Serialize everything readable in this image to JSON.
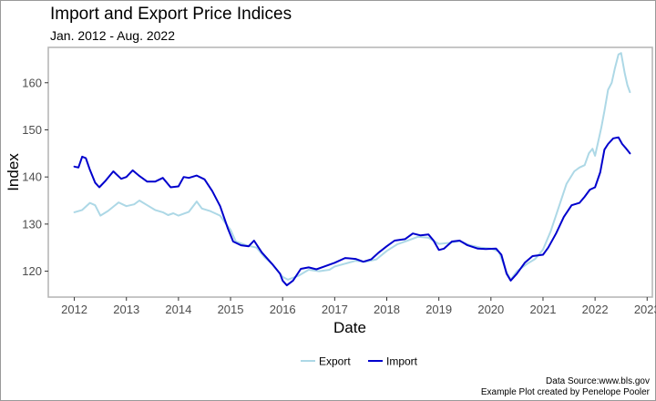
{
  "chart_data": {
    "type": "line",
    "title": "Import and Export Price Indices",
    "subtitle": "Jan. 2012 - Aug. 2022",
    "xlabel": "Date",
    "ylabel": "Index",
    "xlim": [
      2011.5,
      2023.1
    ],
    "ylim": [
      114.5,
      167.5
    ],
    "x_ticks": [
      "2012",
      "2013",
      "2014",
      "2015",
      "2016",
      "2017",
      "2018",
      "2019",
      "2020",
      "2021",
      "2022",
      "2023"
    ],
    "y_ticks": [
      "120",
      "130",
      "140",
      "150",
      "160"
    ],
    "grid": false,
    "legend_position": "bottom",
    "series": [
      {
        "name": "Export",
        "color": "#add8e6",
        "points": [
          [
            2012.0,
            132.5
          ],
          [
            2012.15,
            133.0
          ],
          [
            2012.3,
            134.5
          ],
          [
            2012.4,
            134.0
          ],
          [
            2012.5,
            131.8
          ],
          [
            2012.65,
            132.8
          ],
          [
            2012.85,
            134.6
          ],
          [
            2013.0,
            133.8
          ],
          [
            2013.15,
            134.2
          ],
          [
            2013.25,
            135.0
          ],
          [
            2013.4,
            134.0
          ],
          [
            2013.55,
            133.0
          ],
          [
            2013.7,
            132.5
          ],
          [
            2013.8,
            131.9
          ],
          [
            2013.9,
            132.3
          ],
          [
            2014.0,
            131.8
          ],
          [
            2014.2,
            132.6
          ],
          [
            2014.35,
            134.8
          ],
          [
            2014.45,
            133.3
          ],
          [
            2014.6,
            132.8
          ],
          [
            2014.8,
            131.8
          ],
          [
            2014.9,
            130.2
          ],
          [
            2015.0,
            128.8
          ],
          [
            2015.1,
            126.3
          ],
          [
            2015.3,
            125.5
          ],
          [
            2015.5,
            125.0
          ],
          [
            2015.65,
            123.0
          ],
          [
            2015.8,
            121.5
          ],
          [
            2016.0,
            118.8
          ],
          [
            2016.1,
            118.2
          ],
          [
            2016.3,
            119.0
          ],
          [
            2016.5,
            120.3
          ],
          [
            2016.7,
            120.0
          ],
          [
            2016.9,
            120.3
          ],
          [
            2017.0,
            121.0
          ],
          [
            2017.2,
            121.6
          ],
          [
            2017.4,
            122.2
          ],
          [
            2017.6,
            122.0
          ],
          [
            2017.8,
            122.5
          ],
          [
            2018.0,
            124.3
          ],
          [
            2018.2,
            125.7
          ],
          [
            2018.4,
            126.5
          ],
          [
            2018.6,
            127.3
          ],
          [
            2018.8,
            127.1
          ],
          [
            2019.0,
            125.8
          ],
          [
            2019.2,
            126.0
          ],
          [
            2019.4,
            126.4
          ],
          [
            2019.6,
            125.5
          ],
          [
            2019.8,
            125.0
          ],
          [
            2020.0,
            124.8
          ],
          [
            2020.15,
            124.2
          ],
          [
            2020.3,
            119.8
          ],
          [
            2020.38,
            118.2
          ],
          [
            2020.5,
            120.0
          ],
          [
            2020.7,
            121.6
          ],
          [
            2020.85,
            122.6
          ],
          [
            2021.0,
            124.6
          ],
          [
            2021.15,
            128.5
          ],
          [
            2021.3,
            133.5
          ],
          [
            2021.45,
            138.5
          ],
          [
            2021.6,
            141.2
          ],
          [
            2021.7,
            142.0
          ],
          [
            2021.8,
            142.5
          ],
          [
            2021.88,
            145.0
          ],
          [
            2021.95,
            146.0
          ],
          [
            2022.0,
            144.5
          ],
          [
            2022.05,
            147.0
          ],
          [
            2022.12,
            150.5
          ],
          [
            2022.18,
            154.0
          ],
          [
            2022.25,
            158.5
          ],
          [
            2022.32,
            160.0
          ],
          [
            2022.38,
            163.0
          ],
          [
            2022.45,
            166.0
          ],
          [
            2022.5,
            166.3
          ],
          [
            2022.57,
            162.0
          ],
          [
            2022.62,
            159.5
          ],
          [
            2022.67,
            158.0
          ]
        ]
      },
      {
        "name": "Import",
        "color": "#0000cd",
        "points": [
          [
            2012.0,
            142.2
          ],
          [
            2012.08,
            142.0
          ],
          [
            2012.15,
            144.3
          ],
          [
            2012.22,
            144.0
          ],
          [
            2012.3,
            141.5
          ],
          [
            2012.4,
            138.8
          ],
          [
            2012.48,
            137.8
          ],
          [
            2012.6,
            139.2
          ],
          [
            2012.75,
            141.2
          ],
          [
            2012.9,
            139.6
          ],
          [
            2013.0,
            140.0
          ],
          [
            2013.12,
            141.4
          ],
          [
            2013.25,
            140.2
          ],
          [
            2013.4,
            139.0
          ],
          [
            2013.55,
            139.0
          ],
          [
            2013.7,
            139.8
          ],
          [
            2013.85,
            137.8
          ],
          [
            2014.0,
            138.0
          ],
          [
            2014.1,
            140.0
          ],
          [
            2014.2,
            139.8
          ],
          [
            2014.35,
            140.3
          ],
          [
            2014.5,
            139.5
          ],
          [
            2014.65,
            137.0
          ],
          [
            2014.8,
            133.8
          ],
          [
            2014.95,
            129.0
          ],
          [
            2015.05,
            126.3
          ],
          [
            2015.2,
            125.5
          ],
          [
            2015.35,
            125.3
          ],
          [
            2015.45,
            126.5
          ],
          [
            2015.6,
            124.0
          ],
          [
            2015.8,
            121.5
          ],
          [
            2015.95,
            119.5
          ],
          [
            2016.0,
            118.0
          ],
          [
            2016.08,
            117.0
          ],
          [
            2016.2,
            118.0
          ],
          [
            2016.35,
            120.5
          ],
          [
            2016.5,
            120.8
          ],
          [
            2016.65,
            120.4
          ],
          [
            2016.8,
            121.0
          ],
          [
            2017.0,
            121.8
          ],
          [
            2017.2,
            122.8
          ],
          [
            2017.4,
            122.6
          ],
          [
            2017.55,
            122.0
          ],
          [
            2017.7,
            122.5
          ],
          [
            2017.85,
            124.0
          ],
          [
            2018.0,
            125.3
          ],
          [
            2018.15,
            126.5
          ],
          [
            2018.35,
            126.8
          ],
          [
            2018.5,
            128.0
          ],
          [
            2018.65,
            127.6
          ],
          [
            2018.8,
            127.8
          ],
          [
            2018.9,
            126.5
          ],
          [
            2019.0,
            124.5
          ],
          [
            2019.1,
            124.8
          ],
          [
            2019.25,
            126.3
          ],
          [
            2019.4,
            126.5
          ],
          [
            2019.55,
            125.5
          ],
          [
            2019.75,
            124.8
          ],
          [
            2019.9,
            124.7
          ],
          [
            2020.1,
            124.8
          ],
          [
            2020.2,
            123.5
          ],
          [
            2020.3,
            119.5
          ],
          [
            2020.38,
            118.0
          ],
          [
            2020.5,
            119.5
          ],
          [
            2020.65,
            121.8
          ],
          [
            2020.8,
            123.2
          ],
          [
            2021.0,
            123.5
          ],
          [
            2021.1,
            125.0
          ],
          [
            2021.25,
            128.0
          ],
          [
            2021.4,
            131.5
          ],
          [
            2021.55,
            134.0
          ],
          [
            2021.7,
            134.5
          ],
          [
            2021.8,
            135.8
          ],
          [
            2021.9,
            137.3
          ],
          [
            2022.0,
            137.8
          ],
          [
            2022.1,
            141.0
          ],
          [
            2022.18,
            145.8
          ],
          [
            2022.25,
            147.0
          ],
          [
            2022.35,
            148.2
          ],
          [
            2022.45,
            148.4
          ],
          [
            2022.52,
            147.0
          ],
          [
            2022.6,
            146.0
          ],
          [
            2022.67,
            145.0
          ]
        ]
      }
    ]
  },
  "caption": {
    "line1": "Data Source:www.bls.gov",
    "line2": "Example Plot created by Penelope Pooler"
  }
}
